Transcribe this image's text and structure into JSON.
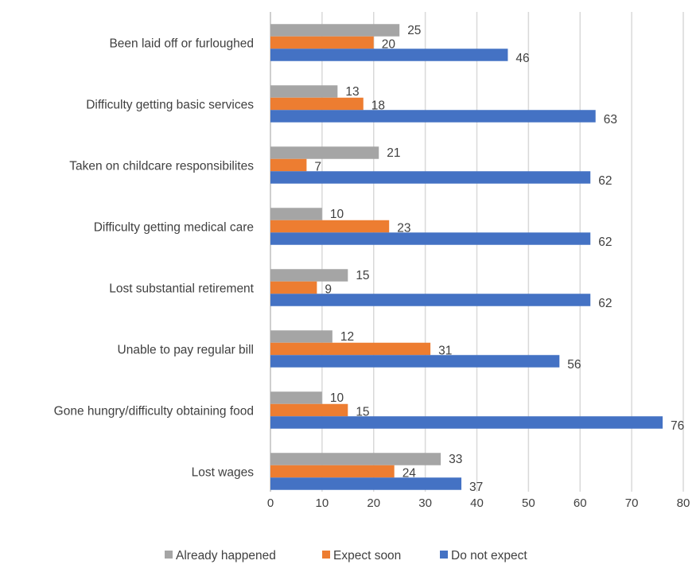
{
  "chart_data": {
    "type": "bar",
    "orientation": "horizontal",
    "categories": [
      "Been laid off or furloughed",
      "Difficulty getting basic services",
      "Taken on childcare responsibilites",
      "Difficulty getting medical care",
      "Lost substantial retirement",
      "Unable to pay regular bill",
      "Gone hungry/difficulty obtaining food",
      "Lost wages"
    ],
    "series": [
      {
        "name": "Already happened",
        "color": "#a5a5a5",
        "values": [
          25,
          13,
          21,
          10,
          15,
          12,
          10,
          33
        ]
      },
      {
        "name": "Expect soon",
        "color": "#ed7d31",
        "values": [
          20,
          18,
          7,
          23,
          9,
          31,
          15,
          24
        ]
      },
      {
        "name": "Do not expect",
        "color": "#4472c4",
        "values": [
          46,
          63,
          62,
          62,
          62,
          56,
          76,
          37
        ]
      }
    ],
    "xlim": [
      0,
      80
    ],
    "xticks": [
      "0",
      "10",
      "20",
      "30",
      "40",
      "50",
      "60",
      "70",
      "80"
    ],
    "grid": "vertical",
    "data_labels": true,
    "legend": "bottom",
    "title": "",
    "xlabel": "",
    "ylabel": ""
  }
}
